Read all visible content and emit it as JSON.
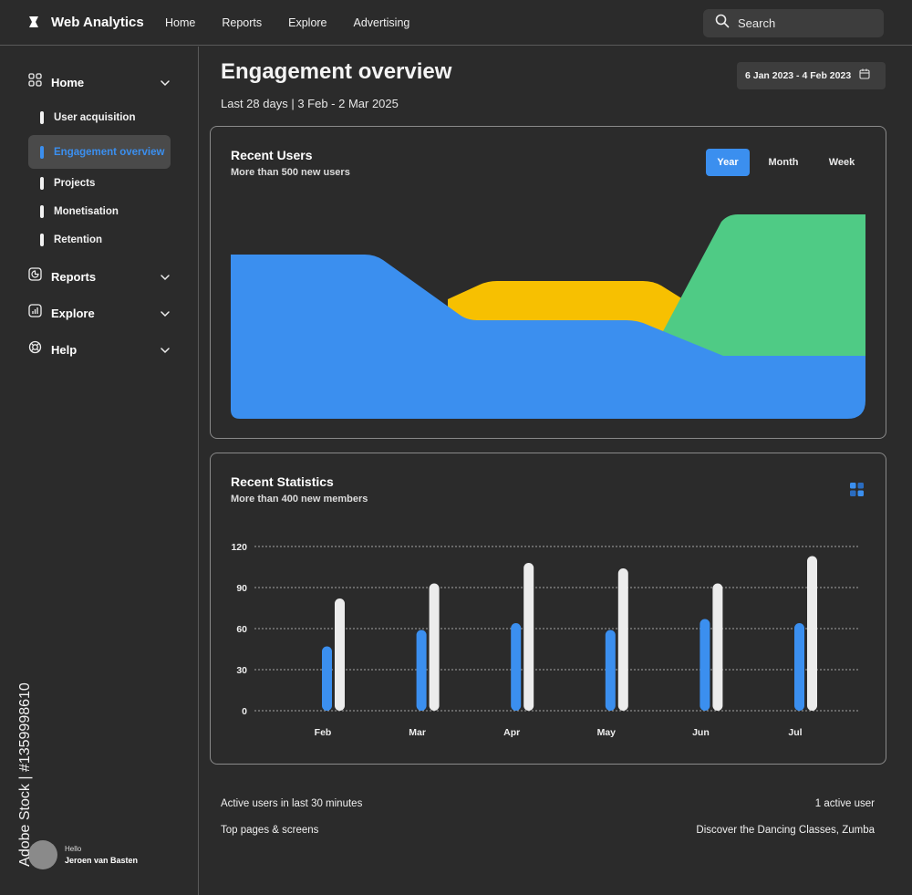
{
  "app": {
    "brand": "Web Analytics"
  },
  "topnav": [
    "Home",
    "Reports",
    "Explore",
    "Advertising"
  ],
  "search": {
    "label": "Search"
  },
  "sidebar": {
    "sections": [
      {
        "label": "Home",
        "icon": "grid-icon"
      },
      {
        "label": "Reports",
        "icon": "pie-chart-icon"
      },
      {
        "label": "Explore",
        "icon": "analytics-icon"
      },
      {
        "label": "Help",
        "icon": "lifebuoy-icon"
      }
    ],
    "subitems": [
      "User acquisition",
      "Engagement overview",
      "Projects",
      "Monetisation",
      "Retention"
    ],
    "active_subitem": "Engagement overview"
  },
  "watermark": "Adobe Stock | #1359998610",
  "user": {
    "greeting": "Hello",
    "name": "Jeroen van Basten"
  },
  "page": {
    "title": "Engagement overview",
    "subtitle": "Last 28 days | 3 Feb - 2 Mar 2025",
    "date_range": "6 Jan 2023 - 4 Feb 2023"
  },
  "recent_users": {
    "title": "Recent Users",
    "subtitle": "More than 500 new users",
    "tabs": [
      "Year",
      "Month",
      "Week"
    ],
    "active_tab": "Year"
  },
  "recent_stats": {
    "title": "Recent Statistics",
    "subtitle": "More than 400 new members"
  },
  "colors": {
    "accent": "#3b8fef",
    "yellow": "#f7c001",
    "green": "#4fcb85",
    "bar_light": "#ececec"
  },
  "chart_data": {
    "type": "bar",
    "categories": [
      "Feb",
      "Mar",
      "Apr",
      "May",
      "Jun",
      "Jul"
    ],
    "series": [
      {
        "values": [
          47,
          59,
          64,
          59,
          67,
          64
        ]
      },
      {
        "values": [
          82,
          93,
          108,
          104,
          93,
          113
        ]
      }
    ],
    "yticks": [
      0,
      30,
      60,
      90,
      120
    ],
    "ylim": [
      0,
      120
    ],
    "grid": true
  },
  "stats": [
    {
      "label": "Active users in last 30 minutes",
      "value": "1 active user"
    },
    {
      "label": "Top pages & screens",
      "value": "Discover the Dancing Classes, Zumba"
    }
  ]
}
